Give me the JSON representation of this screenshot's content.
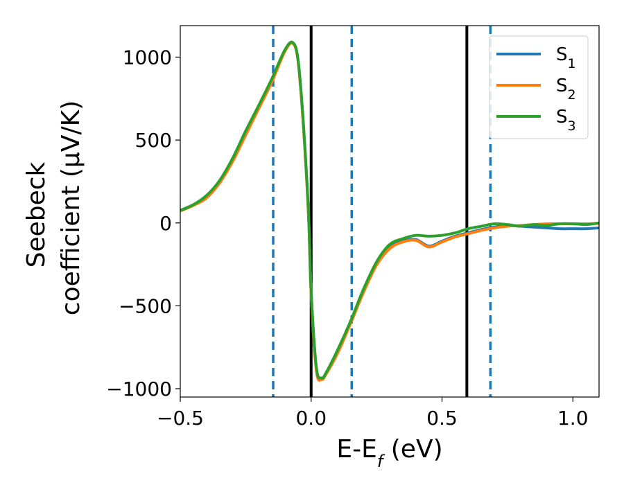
{
  "chart_data": {
    "type": "line",
    "xlabel": "E-E",
    "xlabel_sub": "f",
    "xlabel_unit": " (eV)",
    "ylabel_line1": "Seebeck",
    "ylabel_line2": "coefficient  (μV/K)",
    "xlim": [
      -0.5,
      1.1
    ],
    "ylim": [
      -1050,
      1190
    ],
    "x_ticks": [
      -0.5,
      0.0,
      0.5,
      1.0
    ],
    "x_tick_labels": [
      "−0.5",
      "0.0",
      "0.5",
      "1.0"
    ],
    "y_ticks": [
      -1000,
      -500,
      0,
      500,
      1000
    ],
    "y_tick_labels": [
      "−1000",
      "−500",
      "0",
      "500",
      "1000"
    ],
    "grid": false,
    "legend_position": "top-right",
    "vertical_lines": [
      {
        "x": -0.145,
        "style": "dashed",
        "color": "#1f77b4"
      },
      {
        "x": 0.0,
        "style": "solid",
        "color": "#000000"
      },
      {
        "x": 0.155,
        "style": "dashed",
        "color": "#1f77b4"
      },
      {
        "x": 0.595,
        "style": "solid",
        "color": "#000000"
      },
      {
        "x": 0.685,
        "style": "dashed",
        "color": "#1f77b4"
      }
    ],
    "series": [
      {
        "name": "S",
        "name_sub": "1",
        "color": "#1f77b4",
        "x": [
          -0.5,
          -0.45,
          -0.4,
          -0.35,
          -0.3,
          -0.25,
          -0.2,
          -0.15,
          -0.1,
          -0.07,
          -0.05,
          -0.03,
          -0.01,
          0.0,
          0.02,
          0.04,
          0.06,
          0.1,
          0.15,
          0.2,
          0.25,
          0.3,
          0.35,
          0.4,
          0.45,
          0.5,
          0.55,
          0.6,
          0.65,
          0.7,
          0.75,
          0.8,
          0.85,
          0.9,
          0.95,
          1.0,
          1.05,
          1.1
        ],
        "values": [
          75,
          110,
          160,
          250,
          380,
          540,
          700,
          860,
          1040,
          1085,
          980,
          600,
          50,
          -420,
          -880,
          -940,
          -900,
          -780,
          -600,
          -410,
          -250,
          -150,
          -110,
          -100,
          -140,
          -110,
          -80,
          -60,
          -40,
          -25,
          -15,
          -20,
          -25,
          -30,
          -35,
          -35,
          -35,
          -30
        ]
      },
      {
        "name": "S",
        "name_sub": "2",
        "color": "#ff7f0e",
        "x": [
          -0.5,
          -0.45,
          -0.4,
          -0.35,
          -0.3,
          -0.25,
          -0.2,
          -0.15,
          -0.1,
          -0.07,
          -0.05,
          -0.03,
          -0.01,
          0.0,
          0.02,
          0.04,
          0.06,
          0.1,
          0.15,
          0.2,
          0.25,
          0.3,
          0.35,
          0.4,
          0.45,
          0.5,
          0.55,
          0.6,
          0.65,
          0.7,
          0.75,
          0.8,
          0.85,
          0.9,
          0.95,
          1.0,
          1.05,
          1.1
        ],
        "values": [
          72,
          105,
          150,
          240,
          370,
          530,
          690,
          850,
          1035,
          1082,
          975,
          590,
          40,
          -430,
          -890,
          -945,
          -905,
          -790,
          -610,
          -420,
          -255,
          -155,
          -115,
          -105,
          -145,
          -115,
          -85,
          -65,
          -45,
          -30,
          -20,
          -15,
          -10,
          -5,
          -5,
          -5,
          -5,
          -3
        ]
      },
      {
        "name": "S",
        "name_sub": "3",
        "color": "#2ca02c",
        "x": [
          -0.5,
          -0.45,
          -0.4,
          -0.35,
          -0.3,
          -0.25,
          -0.2,
          -0.15,
          -0.1,
          -0.07,
          -0.05,
          -0.03,
          -0.01,
          0.0,
          0.02,
          0.04,
          0.06,
          0.1,
          0.15,
          0.2,
          0.25,
          0.3,
          0.35,
          0.4,
          0.45,
          0.5,
          0.55,
          0.6,
          0.65,
          0.7,
          0.75,
          0.8,
          0.85,
          0.9,
          0.95,
          1.0,
          1.05,
          1.1
        ],
        "values": [
          75,
          110,
          165,
          255,
          390,
          555,
          710,
          870,
          1045,
          1088,
          985,
          610,
          60,
          -410,
          -870,
          -935,
          -895,
          -770,
          -595,
          -400,
          -235,
          -130,
          -95,
          -75,
          -80,
          -75,
          -60,
          -35,
          -20,
          -5,
          -10,
          -20,
          -10,
          -15,
          -5,
          -5,
          -10,
          0
        ]
      }
    ]
  }
}
